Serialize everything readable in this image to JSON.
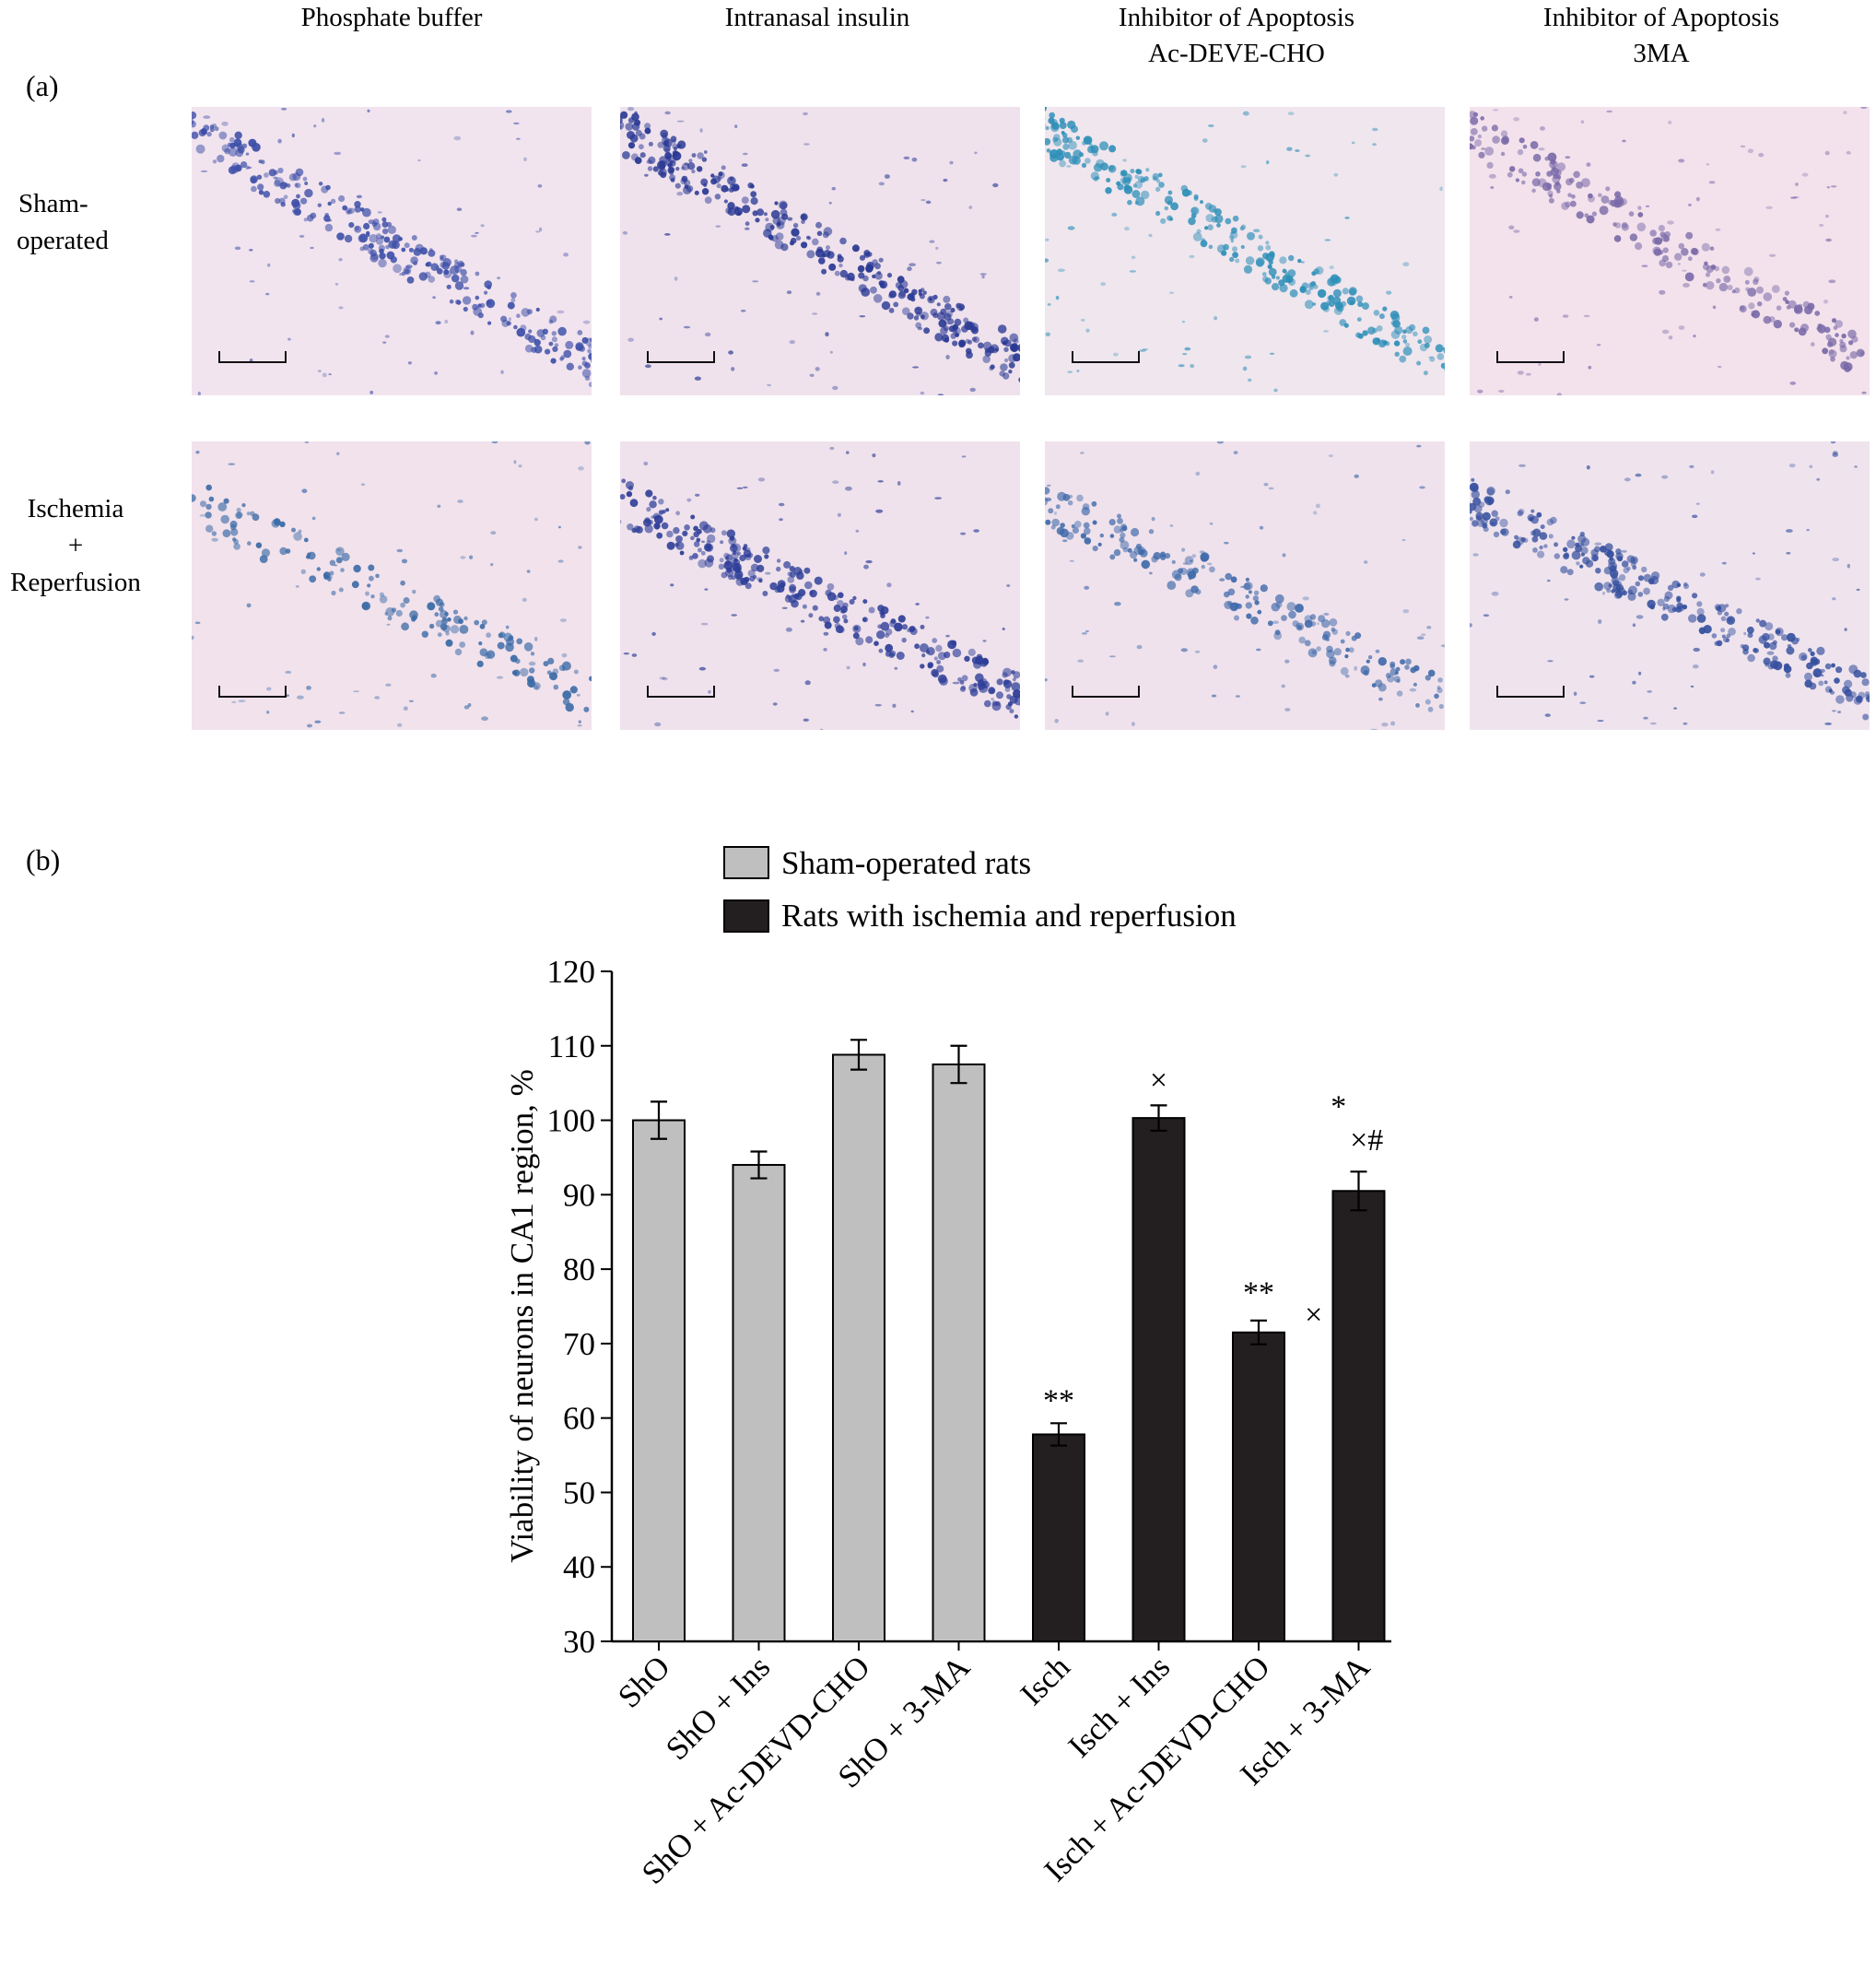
{
  "panel_a": {
    "label": "(a)",
    "columns": [
      {
        "line1": "Phosphate buffer",
        "line2": ""
      },
      {
        "line1": "Intranasal insulin",
        "line2": ""
      },
      {
        "line1": "Inhibitor of Apoptosis",
        "line2": "Ac-DEVE-CHO"
      },
      {
        "line1": "Inhibitor of Apoptosis",
        "line2": "3MA"
      }
    ],
    "rows": [
      {
        "lines": [
          "Sham-",
          "operated"
        ]
      },
      {
        "lines": [
          "Ischemia",
          "+",
          "Reperfusion"
        ]
      }
    ],
    "tiles": [
      {
        "row": 0,
        "col": 0,
        "bg": "#f2e4ee",
        "stain": "#3d4fa8",
        "density": 1.0
      },
      {
        "row": 0,
        "col": 1,
        "bg": "#efe2ec",
        "stain": "#2a3994",
        "density": 1.2
      },
      {
        "row": 0,
        "col": 2,
        "bg": "#f0e6ee",
        "stain": "#2e8fb8",
        "density": 1.0
      },
      {
        "row": 0,
        "col": 3,
        "bg": "#f3e2ec",
        "stain": "#7a6aa8",
        "density": 0.8
      },
      {
        "row": 1,
        "col": 0,
        "bg": "#f2e2ec",
        "stain": "#3a6aa6",
        "density": 0.6
      },
      {
        "row": 1,
        "col": 1,
        "bg": "#efe2ec",
        "stain": "#2e3e98",
        "density": 1.1
      },
      {
        "row": 1,
        "col": 2,
        "bg": "#f0e2ec",
        "stain": "#3f6aaa",
        "density": 0.7
      },
      {
        "row": 1,
        "col": 3,
        "bg": "#efe4ee",
        "stain": "#36509e",
        "density": 1.0
      }
    ]
  },
  "panel_b": {
    "label": "(b)"
  },
  "chart_data": {
    "type": "bar",
    "categories": [
      "ShO",
      "ShO + Ins",
      "ShO + Ac-DEVD-CHO",
      "ShO + 3-MA",
      "Isch",
      "Isch + Ins",
      "Isch + Ac-DEVD-CHO",
      "Isch + 3-MA"
    ],
    "values": [
      100,
      94,
      108.8,
      107.5,
      57.8,
      100.3,
      71.5,
      90.5
    ],
    "errors": [
      2.5,
      1.8,
      2.0,
      2.5,
      1.5,
      1.7,
      1.6,
      2.6
    ],
    "groups": [
      0,
      0,
      0,
      0,
      1,
      1,
      1,
      1
    ],
    "series": [
      {
        "name": "Sham-operated rats",
        "color": "#bfbfbf"
      },
      {
        "name": "Rats with ischemia and reperfusion",
        "color": "#231f20"
      }
    ],
    "annotations": [
      {
        "category": 4,
        "text": "**",
        "y": 61
      },
      {
        "category": 5,
        "text": "×",
        "y": 104
      },
      {
        "category": 6,
        "text": "**",
        "y": 75.5
      },
      {
        "category": 6.55,
        "text": "×",
        "y": 72.5
      },
      {
        "category": 6.8,
        "text": "*",
        "y": 100.5
      },
      {
        "category": 7.08,
        "text": "×#",
        "y": 96
      }
    ],
    "ylabel": "Viability of neurons in CA1 region, %",
    "xlabel": "",
    "title": "",
    "ylim": [
      30,
      120
    ],
    "yticks": [
      30,
      40,
      50,
      60,
      70,
      80,
      90,
      100,
      110,
      120
    ],
    "grid": false,
    "legend_position": "top"
  }
}
